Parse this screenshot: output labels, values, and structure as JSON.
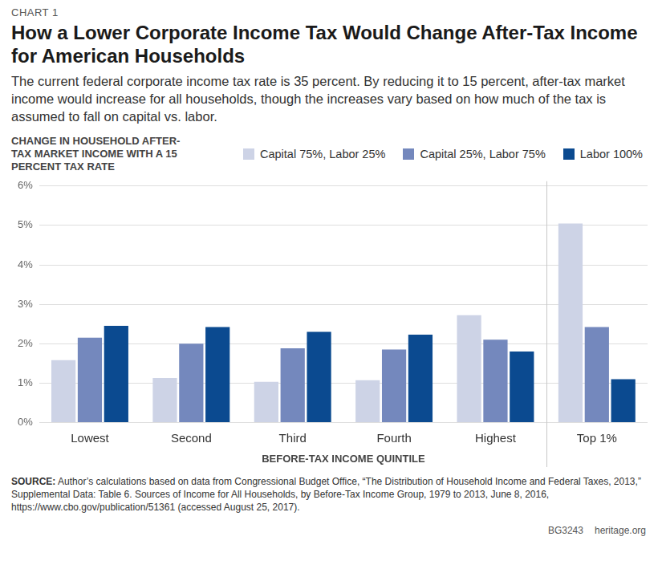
{
  "chart_data": {
    "type": "bar",
    "annotations": [
      "CHART 1"
    ],
    "title": "How a Lower Corporate Income Tax Would Change After-Tax Income for American Households",
    "subtitle": "The current federal corporate income tax rate is 35 percent. By reducing it to 15 percent, after-tax market income would increase for all households, though the increases vary based on how much of the tax is assumed to fall on capital vs. labor.",
    "y_label": "CHANGE IN HOUSEHOLD AFTER-TAX MARKET INCOME WITH A 15 PERCENT TAX RATE",
    "x_label": "BEFORE-TAX INCOME QUINTILE",
    "categories": [
      "Lowest",
      "Second",
      "Third",
      "Fourth",
      "Highest",
      "Top 1%"
    ],
    "series": [
      {
        "name": "Capital 75%, Labor 25%",
        "color": "#cdd3e6",
        "values": [
          1.58,
          1.13,
          1.03,
          1.07,
          2.72,
          5.05
        ]
      },
      {
        "name": "Capital 25%, Labor 75%",
        "color": "#7488bd",
        "values": [
          2.15,
          2.0,
          1.88,
          1.85,
          2.1,
          2.42
        ]
      },
      {
        "name": "Labor 100%",
        "color": "#0b4a90",
        "values": [
          2.45,
          2.42,
          2.3,
          2.23,
          1.8,
          1.1
        ]
      }
    ],
    "ylim": [
      0,
      6
    ],
    "yticks": [
      {
        "value": 0,
        "label": "0%"
      },
      {
        "value": 1,
        "label": "1%"
      },
      {
        "value": 2,
        "label": "2%"
      },
      {
        "value": 3,
        "label": "3%"
      },
      {
        "value": 4,
        "label": "4%"
      },
      {
        "value": 5,
        "label": "5%"
      },
      {
        "value": 6,
        "label": "6%"
      }
    ],
    "grid": true,
    "legend": "top-right",
    "source_label": "SOURCE:",
    "source": "Author’s calculations based on data from Congressional Budget Office, “The Distribution of Household Income and Federal Taxes, 2013,” Supplemental Data: Table 6. Sources of Income for All Households, by Before-Tax Income Group, 1979 to 2013, June 8, 2016, https://www.cbo.gov/publication/51361 (accessed August 25, 2017).",
    "footer": [
      "BG3243",
      "heritage.org"
    ]
  }
}
